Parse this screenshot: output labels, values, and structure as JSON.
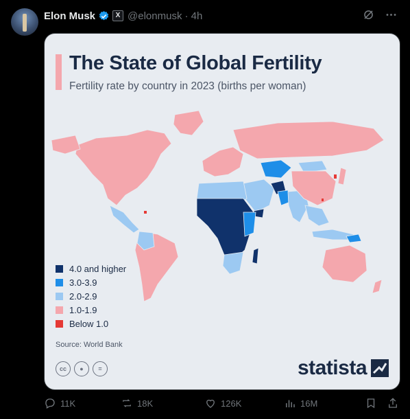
{
  "post": {
    "author_name": "Elon Musk",
    "handle": "@elonmusk",
    "time": "· 4h"
  },
  "card": {
    "title": "The State of Global Fertility",
    "subtitle": "Fertility rate by country in 2023 (births per woman)",
    "legend": [
      {
        "label": "4.0 and higher",
        "color": "#10326b"
      },
      {
        "label": "3.0-3.9",
        "color": "#1e8ee8"
      },
      {
        "label": "2.0-2.9",
        "color": "#9cc9f2"
      },
      {
        "label": "1.0-1.9",
        "color": "#f4a7ad"
      },
      {
        "label": "Below 1.0",
        "color": "#e53935"
      }
    ],
    "source": "Source: World Bank",
    "brand": "statista"
  },
  "actions": {
    "replies": "11K",
    "reposts": "18K",
    "likes": "126K",
    "views": "16M"
  },
  "icons": [
    "verified-icon",
    "x-badge-icon",
    "grok-icon",
    "more-icon",
    "reply-icon",
    "repost-icon",
    "like-icon",
    "views-icon",
    "bookmark-icon",
    "share-icon"
  ]
}
